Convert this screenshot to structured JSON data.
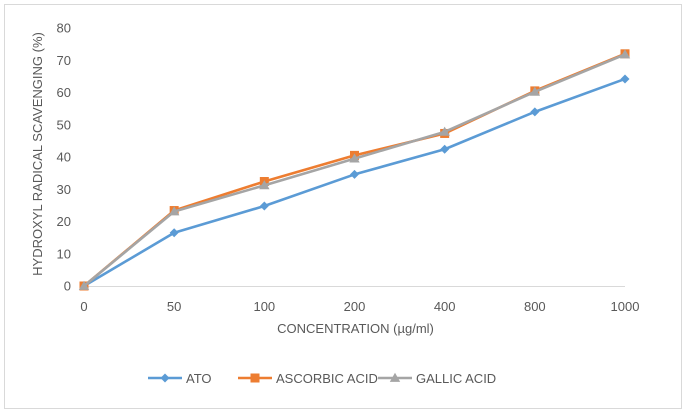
{
  "chart_data": {
    "type": "line",
    "title": "",
    "xlabel": "CONCENTRATION (µg/ml)",
    "ylabel": "HYDROXYL RADICAL SCAVENGING (%)",
    "categories": [
      "0",
      "50",
      "100",
      "200",
      "400",
      "800",
      "1000"
    ],
    "ylim": [
      0,
      80
    ],
    "yticks": [
      "0",
      "10",
      "20",
      "30",
      "40",
      "50",
      "60",
      "70",
      "80"
    ],
    "grid": false,
    "legend_position": "bottom",
    "series": [
      {
        "name": "ATO",
        "color": "#5b9bd5",
        "marker": "diamond",
        "values": [
          0,
          16.5,
          24.8,
          34.6,
          42.4,
          54.0,
          64.2
        ]
      },
      {
        "name": "ASCORBIC ACID",
        "color": "#ed7d31",
        "marker": "square",
        "values": [
          0,
          23.4,
          32.4,
          40.5,
          47.3,
          60.5,
          72.0
        ]
      },
      {
        "name": "GALLIC ACID",
        "color": "#a5a5a5",
        "marker": "triangle",
        "values": [
          0,
          23.1,
          31.2,
          39.5,
          47.8,
          60.2,
          71.8
        ]
      }
    ]
  }
}
